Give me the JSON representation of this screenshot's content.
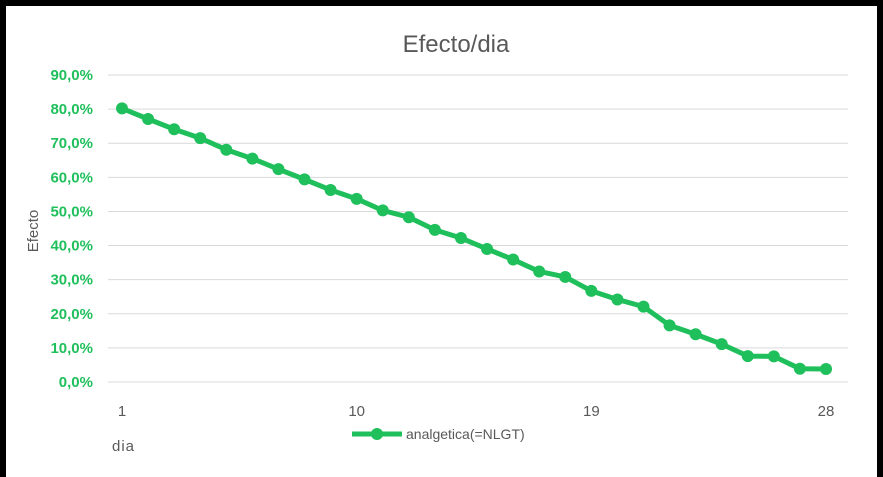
{
  "chart_data": {
    "type": "line",
    "title": "Efecto/dia",
    "xlabel": "dia",
    "ylabel": "Efecto",
    "x": [
      1,
      2,
      3,
      4,
      5,
      6,
      7,
      8,
      9,
      10,
      11,
      12,
      13,
      14,
      15,
      16,
      17,
      18,
      19,
      20,
      21,
      22,
      23,
      24,
      25,
      26,
      27,
      28
    ],
    "x_tick_labels": [
      "1",
      "10",
      "19",
      "28"
    ],
    "y_tick_labels": [
      "0,0%",
      "10,0%",
      "20,0%",
      "30,0%",
      "40,0%",
      "50,0%",
      "60,0%",
      "70,0%",
      "80,0%",
      "90,0%"
    ],
    "ylim": [
      0,
      90
    ],
    "grid": true,
    "legend_position": "bottom",
    "series": [
      {
        "name": "analgetica(=NLGT)",
        "color": "#1fbf5b",
        "values": [
          80.2,
          77.1,
          74.1,
          71.5,
          68.1,
          65.5,
          62.4,
          59.4,
          56.3,
          53.7,
          50.3,
          48.3,
          44.6,
          42.2,
          39.0,
          35.9,
          32.4,
          30.8,
          26.7,
          24.2,
          22.1,
          16.6,
          14.0,
          11.1,
          7.6,
          7.5,
          3.9,
          3.8
        ]
      }
    ]
  }
}
